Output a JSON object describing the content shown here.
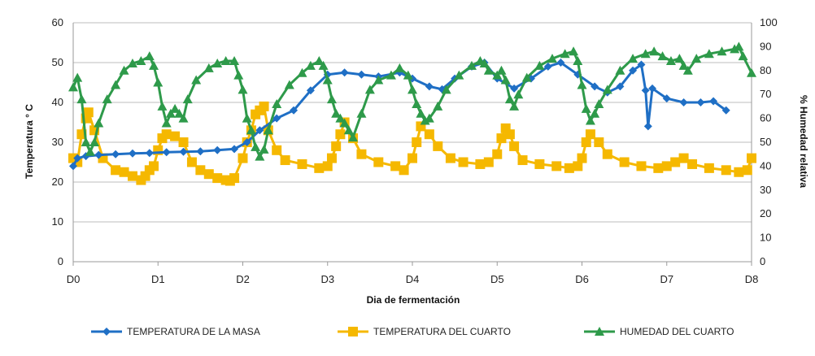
{
  "chart_data": {
    "type": "line",
    "title": "",
    "xlabel": "Dia de fermentación",
    "ylabel": "Temperatura ° C",
    "y2label": "% Humedad relativa",
    "x_tick_labels": [
      "D0",
      "D1",
      "D2",
      "D3",
      "D4",
      "D5",
      "D6",
      "D7",
      "D8"
    ],
    "xlim": [
      0,
      8
    ],
    "ylim": [
      0,
      60
    ],
    "y_ticks": [
      0,
      10,
      20,
      30,
      40,
      50,
      60
    ],
    "y2lim": [
      0,
      100
    ],
    "y2_ticks": [
      0,
      10,
      20,
      30,
      40,
      50,
      60,
      70,
      80,
      90,
      100
    ],
    "grid": "horizontal",
    "legend_position": "bottom",
    "series": [
      {
        "name": "TEMPERATURA DE LA MASA",
        "axis": "left",
        "color": "#1f6fc5",
        "marker": "diamond",
        "points": [
          [
            0,
            24
          ],
          [
            0.05,
            26
          ],
          [
            0.15,
            26.5
          ],
          [
            0.3,
            26.8
          ],
          [
            0.5,
            27
          ],
          [
            0.7,
            27.2
          ],
          [
            0.9,
            27.3
          ],
          [
            1.1,
            27.5
          ],
          [
            1.3,
            27.6
          ],
          [
            1.5,
            27.7
          ],
          [
            1.7,
            28
          ],
          [
            1.9,
            28.3
          ],
          [
            2.05,
            30
          ],
          [
            2.2,
            33
          ],
          [
            2.4,
            36
          ],
          [
            2.6,
            38
          ],
          [
            2.8,
            43
          ],
          [
            3.0,
            47
          ],
          [
            3.2,
            47.5
          ],
          [
            3.4,
            47
          ],
          [
            3.6,
            46.5
          ],
          [
            3.85,
            47.5
          ],
          [
            4.0,
            46
          ],
          [
            4.2,
            44
          ],
          [
            4.35,
            43.3
          ],
          [
            4.5,
            46
          ],
          [
            4.7,
            49
          ],
          [
            4.85,
            50
          ],
          [
            5.0,
            46
          ],
          [
            5.2,
            43.5
          ],
          [
            5.4,
            46
          ],
          [
            5.6,
            49
          ],
          [
            5.75,
            50
          ],
          [
            5.95,
            47
          ],
          [
            6.15,
            44
          ],
          [
            6.3,
            42.5
          ],
          [
            6.45,
            44
          ],
          [
            6.6,
            48
          ],
          [
            6.7,
            49.5
          ],
          [
            6.75,
            43
          ],
          [
            6.78,
            34
          ],
          [
            6.83,
            43.5
          ],
          [
            7.0,
            41
          ],
          [
            7.2,
            40
          ],
          [
            7.4,
            40
          ],
          [
            7.55,
            40.3
          ],
          [
            7.7,
            38
          ]
        ]
      },
      {
        "name": "TEMPERATURA DEL CUARTO",
        "axis": "left",
        "color": "#f5b800",
        "marker": "square",
        "points": [
          [
            0,
            26
          ],
          [
            0.05,
            25
          ],
          [
            0.1,
            32
          ],
          [
            0.15,
            36
          ],
          [
            0.18,
            37.5
          ],
          [
            0.25,
            33
          ],
          [
            0.35,
            26
          ],
          [
            0.5,
            23
          ],
          [
            0.6,
            22.5
          ],
          [
            0.7,
            21.5
          ],
          [
            0.8,
            20.5
          ],
          [
            0.85,
            21.5
          ],
          [
            0.9,
            23
          ],
          [
            0.95,
            24
          ],
          [
            1.0,
            28
          ],
          [
            1.05,
            31
          ],
          [
            1.1,
            32
          ],
          [
            1.2,
            31.5
          ],
          [
            1.3,
            30
          ],
          [
            1.4,
            25
          ],
          [
            1.5,
            23
          ],
          [
            1.6,
            22
          ],
          [
            1.7,
            21
          ],
          [
            1.8,
            20.5
          ],
          [
            1.85,
            20.3
          ],
          [
            1.9,
            21
          ],
          [
            2.0,
            26
          ],
          [
            2.05,
            30
          ],
          [
            2.1,
            33
          ],
          [
            2.15,
            37
          ],
          [
            2.2,
            38
          ],
          [
            2.25,
            39
          ],
          [
            2.3,
            33
          ],
          [
            2.4,
            28
          ],
          [
            2.5,
            25.5
          ],
          [
            2.7,
            24.5
          ],
          [
            2.9,
            23.5
          ],
          [
            3.0,
            24
          ],
          [
            3.05,
            26
          ],
          [
            3.1,
            29
          ],
          [
            3.15,
            32
          ],
          [
            3.2,
            35
          ],
          [
            3.3,
            31
          ],
          [
            3.4,
            27
          ],
          [
            3.6,
            25
          ],
          [
            3.8,
            24
          ],
          [
            3.9,
            23
          ],
          [
            4.0,
            26
          ],
          [
            4.05,
            30
          ],
          [
            4.1,
            34
          ],
          [
            4.2,
            32
          ],
          [
            4.3,
            29
          ],
          [
            4.45,
            26
          ],
          [
            4.6,
            25
          ],
          [
            4.8,
            24.5
          ],
          [
            4.9,
            25
          ],
          [
            5.0,
            27
          ],
          [
            5.05,
            31
          ],
          [
            5.1,
            33.5
          ],
          [
            5.15,
            32
          ],
          [
            5.2,
            29
          ],
          [
            5.3,
            25.5
          ],
          [
            5.5,
            24.5
          ],
          [
            5.7,
            24
          ],
          [
            5.85,
            23.5
          ],
          [
            5.95,
            24
          ],
          [
            6.0,
            26
          ],
          [
            6.05,
            30
          ],
          [
            6.1,
            32
          ],
          [
            6.2,
            30
          ],
          [
            6.3,
            27
          ],
          [
            6.5,
            25
          ],
          [
            6.7,
            24
          ],
          [
            6.9,
            23.5
          ],
          [
            7.0,
            24
          ],
          [
            7.1,
            25
          ],
          [
            7.2,
            26
          ],
          [
            7.3,
            24.5
          ],
          [
            7.5,
            23.5
          ],
          [
            7.7,
            23
          ],
          [
            7.85,
            22.5
          ],
          [
            7.95,
            23
          ],
          [
            8.0,
            26
          ]
        ]
      },
      {
        "name": "HUMEDAD DEL CUARTO",
        "axis": "right",
        "color": "#2e9a4a",
        "marker": "triangle",
        "points": [
          [
            0,
            73
          ],
          [
            0.05,
            77
          ],
          [
            0.1,
            68
          ],
          [
            0.15,
            50
          ],
          [
            0.2,
            46
          ],
          [
            0.25,
            50
          ],
          [
            0.3,
            58
          ],
          [
            0.4,
            68
          ],
          [
            0.5,
            74
          ],
          [
            0.6,
            80
          ],
          [
            0.7,
            83
          ],
          [
            0.8,
            84
          ],
          [
            0.9,
            86
          ],
          [
            0.95,
            82
          ],
          [
            1.0,
            75
          ],
          [
            1.05,
            65
          ],
          [
            1.1,
            58
          ],
          [
            1.15,
            62
          ],
          [
            1.2,
            64
          ],
          [
            1.25,
            62
          ],
          [
            1.3,
            60
          ],
          [
            1.35,
            68
          ],
          [
            1.45,
            76
          ],
          [
            1.6,
            81
          ],
          [
            1.7,
            83
          ],
          [
            1.8,
            84
          ],
          [
            1.9,
            84
          ],
          [
            1.95,
            78
          ],
          [
            2.0,
            72
          ],
          [
            2.05,
            60
          ],
          [
            2.1,
            55
          ],
          [
            2.15,
            48
          ],
          [
            2.2,
            44
          ],
          [
            2.25,
            47
          ],
          [
            2.3,
            55
          ],
          [
            2.4,
            66
          ],
          [
            2.55,
            74
          ],
          [
            2.7,
            79
          ],
          [
            2.8,
            82
          ],
          [
            2.9,
            84
          ],
          [
            2.95,
            82
          ],
          [
            3.0,
            76
          ],
          [
            3.05,
            68
          ],
          [
            3.1,
            62
          ],
          [
            3.15,
            60
          ],
          [
            3.2,
            58
          ],
          [
            3.25,
            55
          ],
          [
            3.3,
            52
          ],
          [
            3.4,
            62
          ],
          [
            3.5,
            72
          ],
          [
            3.6,
            76
          ],
          [
            3.75,
            78
          ],
          [
            3.85,
            81
          ],
          [
            3.95,
            78
          ],
          [
            4.0,
            72
          ],
          [
            4.05,
            66
          ],
          [
            4.1,
            62
          ],
          [
            4.15,
            59
          ],
          [
            4.2,
            60
          ],
          [
            4.3,
            65
          ],
          [
            4.4,
            72
          ],
          [
            4.55,
            78
          ],
          [
            4.7,
            82
          ],
          [
            4.8,
            84
          ],
          [
            4.85,
            83
          ],
          [
            4.9,
            80
          ],
          [
            5.0,
            78
          ],
          [
            5.05,
            80
          ],
          [
            5.1,
            76
          ],
          [
            5.15,
            68
          ],
          [
            5.2,
            65
          ],
          [
            5.25,
            70
          ],
          [
            5.35,
            77
          ],
          [
            5.5,
            82
          ],
          [
            5.65,
            85
          ],
          [
            5.8,
            87
          ],
          [
            5.9,
            88
          ],
          [
            5.95,
            84
          ],
          [
            6.0,
            74
          ],
          [
            6.05,
            64
          ],
          [
            6.1,
            59
          ],
          [
            6.15,
            62
          ],
          [
            6.2,
            66
          ],
          [
            6.3,
            72
          ],
          [
            6.45,
            80
          ],
          [
            6.6,
            85
          ],
          [
            6.75,
            87
          ],
          [
            6.85,
            88
          ],
          [
            6.95,
            86
          ],
          [
            7.05,
            84
          ],
          [
            7.15,
            85
          ],
          [
            7.2,
            82
          ],
          [
            7.25,
            80
          ],
          [
            7.35,
            85
          ],
          [
            7.5,
            87
          ],
          [
            7.65,
            88
          ],
          [
            7.8,
            89
          ],
          [
            7.85,
            90
          ],
          [
            7.9,
            86
          ],
          [
            8.0,
            79
          ]
        ]
      }
    ]
  }
}
